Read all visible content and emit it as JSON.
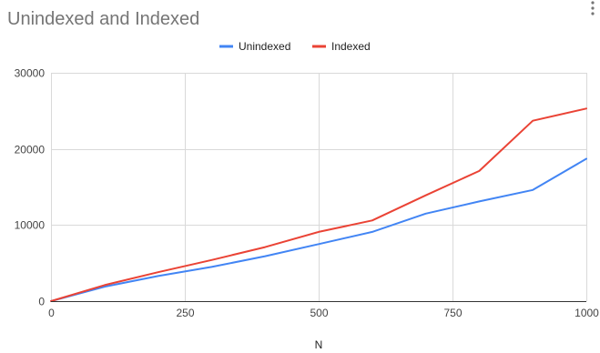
{
  "chart_data": {
    "type": "line",
    "title": "Unindexed and Indexed",
    "xlabel": "N",
    "ylabel": "",
    "xlim": [
      0,
      1000
    ],
    "ylim": [
      0,
      30000
    ],
    "x_ticks": [
      0,
      250,
      500,
      750,
      1000
    ],
    "y_ticks": [
      0,
      10000,
      20000,
      30000
    ],
    "x_tick_labels": [
      "0",
      "250",
      "500",
      "750",
      "1000"
    ],
    "y_tick_labels": [
      "0",
      "10000",
      "20000",
      "30000"
    ],
    "grid": true,
    "legend_position": "top-center",
    "x": [
      0,
      100,
      200,
      300,
      400,
      500,
      600,
      700,
      800,
      900,
      1000
    ],
    "series": [
      {
        "name": "Unindexed",
        "color": "#4285f4",
        "values": [
          0,
          1900,
          3300,
          4500,
          5900,
          7500,
          9100,
          11500,
          13100,
          14600,
          18700
        ]
      },
      {
        "name": "Indexed",
        "color": "#ea4335",
        "values": [
          0,
          2100,
          3800,
          5400,
          7100,
          9100,
          10600,
          13900,
          17100,
          23700,
          25300
        ]
      }
    ]
  }
}
